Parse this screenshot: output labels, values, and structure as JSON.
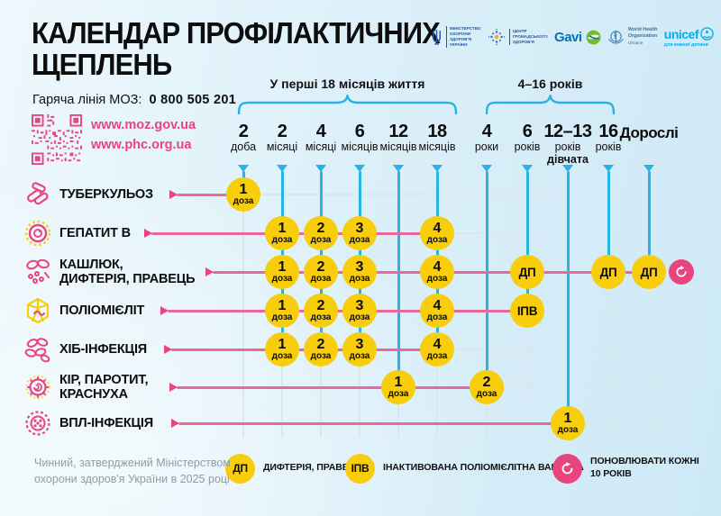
{
  "title": "КАЛЕНДАР ПРОФІЛАКТИЧНИХ\nЩЕПЛЕНЬ",
  "hotline": {
    "label": "Гаряча лінія МОЗ:",
    "number": "0 800 505 201"
  },
  "links": {
    "moz": "www.moz.gov.ua",
    "phc": "www.phc.org.ua"
  },
  "logos": {
    "moh": {
      "lines": [
        "МІНІСТЕРСТВО",
        "ОХОРОНИ",
        "ЗДОРОВ'Я",
        "УКРАЇНИ"
      ]
    },
    "phc": {
      "lines": [
        "ЦЕНТР",
        "ГРОМАДСЬКОГО",
        "ЗДОРОВ'Я"
      ]
    },
    "gavi": {
      "text": "Gavi"
    },
    "who": {
      "lines": [
        "World Health",
        "Organization"
      ],
      "sub": "Ukraine"
    },
    "unicef": {
      "text": "unicef",
      "sub": "для кожної дитини"
    }
  },
  "brackets": [
    {
      "label": "У перші 18 місяців життя"
    },
    {
      "label": "4–16 років"
    }
  ],
  "legend": [
    {
      "badge": "ДП",
      "text": "ДИФТЕРІЯ, ПРАВЕЦЬ"
    },
    {
      "badge": "ІПВ",
      "text": "ІНАКТИВОВАНА ПОЛІОМІЄЛІТНА ВАКЦИНА"
    },
    {
      "badge": "refresh-icon",
      "text": "ПОНОВЛЮВАТИ КОЖНІ\n10 РОКІВ"
    }
  ],
  "footnote": "Чинний, затверджений Міністерством\nохорони здоров'я України в 2025 році",
  "chart_data": {
    "type": "table",
    "title": "Календар профілактичних щеплень",
    "columns": [
      {
        "num": "2",
        "unit": "доба"
      },
      {
        "num": "2",
        "unit": "місяці"
      },
      {
        "num": "4",
        "unit": "місяці"
      },
      {
        "num": "6",
        "unit": "місяців"
      },
      {
        "num": "12",
        "unit": "місяців"
      },
      {
        "num": "18",
        "unit": "місяців"
      },
      {
        "num": "4",
        "unit": "роки"
      },
      {
        "num": "6",
        "unit": "років"
      },
      {
        "num": "12–13",
        "unit": "років",
        "unit2": "дівчата"
      },
      {
        "num": "16",
        "unit": "років"
      },
      {
        "num": "Дорослі",
        "unit": "",
        "adult": true
      }
    ],
    "rows": [
      {
        "lines": [
          "ТУБЕРКУЛЬОЗ"
        ],
        "icon": "tuberculosis"
      },
      {
        "lines": [
          "ГЕПАТИТ В"
        ],
        "icon": "hepatitis-b"
      },
      {
        "lines": [
          "КАШЛЮК,",
          "ДИФТЕРІЯ, ПРАВЕЦЬ"
        ],
        "icon": "pertussis-diphtheria-tetanus"
      },
      {
        "lines": [
          "ПОЛІОМІЄЛІТ"
        ],
        "icon": "polio"
      },
      {
        "lines": [
          "ХІБ-ІНФЕКЦІЯ"
        ],
        "icon": "hib"
      },
      {
        "lines": [
          "КІР, ПАРОТИТ,",
          "КРАСНУХА"
        ],
        "icon": "measles-mumps-rubella"
      },
      {
        "lines": [
          "ВПЛ-ІНФЕКЦІЯ"
        ],
        "icon": "hpv"
      }
    ],
    "doses": [
      {
        "row": 0,
        "col": 0,
        "label": "1",
        "sub": "доза"
      },
      {
        "row": 1,
        "col": 1,
        "label": "1",
        "sub": "доза"
      },
      {
        "row": 1,
        "col": 2,
        "label": "2",
        "sub": "доза"
      },
      {
        "row": 1,
        "col": 3,
        "label": "3",
        "sub": "доза"
      },
      {
        "row": 1,
        "col": 5,
        "label": "4",
        "sub": "доза"
      },
      {
        "row": 2,
        "col": 1,
        "label": "1",
        "sub": "доза"
      },
      {
        "row": 2,
        "col": 2,
        "label": "2",
        "sub": "доза"
      },
      {
        "row": 2,
        "col": 3,
        "label": "3",
        "sub": "доза"
      },
      {
        "row": 2,
        "col": 5,
        "label": "4",
        "sub": "доза"
      },
      {
        "row": 2,
        "col": 7,
        "label": "ДП"
      },
      {
        "row": 2,
        "col": 9,
        "label": "ДП"
      },
      {
        "row": 2,
        "col": 10,
        "label": "ДП",
        "repeat_after": true
      },
      {
        "row": 3,
        "col": 1,
        "label": "1",
        "sub": "доза"
      },
      {
        "row": 3,
        "col": 2,
        "label": "2",
        "sub": "доза"
      },
      {
        "row": 3,
        "col": 3,
        "label": "3",
        "sub": "доза"
      },
      {
        "row": 3,
        "col": 5,
        "label": "4",
        "sub": "доза"
      },
      {
        "row": 3,
        "col": 7,
        "label": "ІПВ"
      },
      {
        "row": 4,
        "col": 1,
        "label": "1",
        "sub": "доза"
      },
      {
        "row": 4,
        "col": 2,
        "label": "2",
        "sub": "доза"
      },
      {
        "row": 4,
        "col": 3,
        "label": "3",
        "sub": "доза"
      },
      {
        "row": 4,
        "col": 5,
        "label": "4",
        "sub": "доза"
      },
      {
        "row": 5,
        "col": 4,
        "label": "1",
        "sub": "доза"
      },
      {
        "row": 5,
        "col": 6,
        "label": "2",
        "sub": "доза"
      },
      {
        "row": 6,
        "col": 8,
        "label": "1",
        "sub": "доза"
      }
    ],
    "notes": {
      "repeat": "ПОНОВЛЮВАТИ КОЖНІ 10 РОКІВ"
    },
    "colors": {
      "cyan": "#29B2E5",
      "pink": "#E8457E",
      "pink_line": "#E86A9B",
      "yellow": "#F7CD0C",
      "grid": "#D9E7EE",
      "footnote_gray": "#8E9DA8"
    }
  }
}
